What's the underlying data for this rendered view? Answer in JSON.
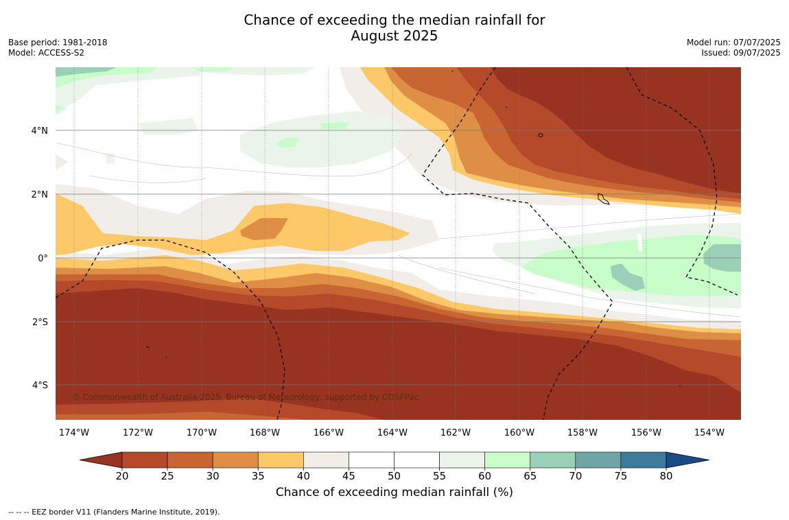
{
  "title_line1": "Chance of exceeding the median rainfall for",
  "title_line2": "August 2025",
  "base_period": "Base period: 1981-2018",
  "model": "Model: ACCESS-S2",
  "model_run": "Model run: 07/07/2025",
  "issued": "Issued: 09/07/2025",
  "copyright": "© Commonwealth of Australia 2025, Bureau of Meteorology, supported by COSPPac",
  "colorbar_label": "Chance of exceeding median rainfall (%)",
  "footnote": "--  --  -- EEZ border V11 (Flanders Marine Institute, 2019).",
  "lat_labels": [
    "4°N",
    "2°N",
    "0°",
    "2°S",
    "4°S"
  ],
  "lon_labels": [
    "174°W",
    "172°W",
    "170°W",
    "168°W",
    "166°W",
    "164°W",
    "162°W",
    "160°W",
    "158°W",
    "156°W",
    "154°W"
  ],
  "colorbar": {
    "ticks": [
      "20",
      "25",
      "30",
      "35",
      "40",
      "45",
      "50",
      "55",
      "60",
      "65",
      "70",
      "75",
      "80"
    ],
    "colors": [
      "#973320",
      "#b54a2a",
      "#c96433",
      "#de8e45",
      "#fdc867",
      "#f1ede8",
      "#ffffff",
      "#ffffff",
      "#eaf4ea",
      "#c8fcc8",
      "#9ccfb7",
      "#6fa5a6",
      "#3e7a9b",
      "#1a4a87"
    ]
  }
}
